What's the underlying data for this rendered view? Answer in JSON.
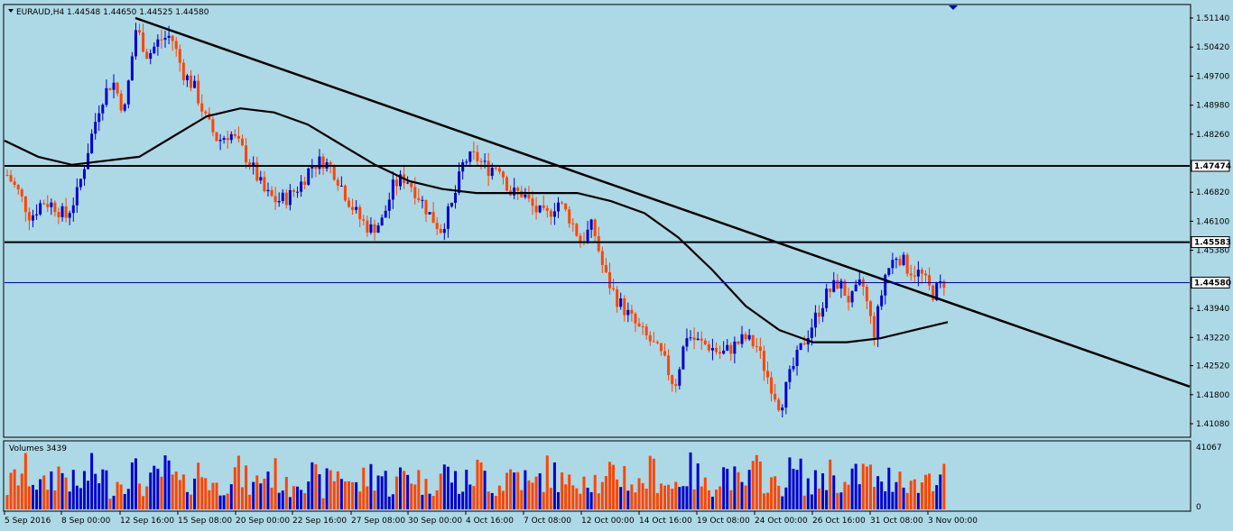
{
  "chart_data": {
    "type": "candlestick",
    "symbol_header": "EURAUD,H4  1.44548 1.44650 1.44525 1.44580",
    "colors": {
      "background": "#add8e6",
      "bull": "#0000cd",
      "bear": "#ff4500",
      "line": "#000000",
      "bid_line": "#0000cd"
    },
    "price_axis": {
      "ylim": [
        1.4108,
        1.5114
      ],
      "ticks": [
        "1.51140",
        "1.50420",
        "1.49700",
        "1.48980",
        "1.48260",
        "1.46820",
        "1.46100",
        "1.45380",
        "1.43940",
        "1.43220",
        "1.42520",
        "1.41800",
        "1.41080"
      ]
    },
    "horizontal_levels": [
      {
        "label": "1.47474",
        "value": 1.47474
      },
      {
        "label": "1.45583",
        "value": 1.45583
      }
    ],
    "current_price": {
      "label": "1.44580",
      "value": 1.4458
    },
    "trendline": {
      "start": {
        "bar": 0,
        "price": 1.5114
      },
      "end": {
        "bar": 1310,
        "price": 1.42
      }
    },
    "time_axis_labels": [
      "5 Sep 2016",
      "8 Sep 00:00",
      "12 Sep 16:00",
      "15 Sep 08:00",
      "20 Sep 00:00",
      "22 Sep 16:00",
      "27 Sep 08:00",
      "30 Sep 00:00",
      "4 Oct 16:00",
      "7 Oct 08:00",
      "12 Oct 00:00",
      "14 Oct 16:00",
      "19 Oct 08:00",
      "24 Oct 00:00",
      "26 Oct 16:00",
      "31 Oct 08:00",
      "3 Nov 00:00"
    ],
    "close_path": [
      1.4725,
      1.468,
      1.462,
      1.466,
      1.465,
      1.462,
      1.468,
      1.48,
      1.491,
      1.496,
      1.488,
      1.509,
      1.502,
      1.506,
      1.507,
      1.498,
      1.494,
      1.486,
      1.481,
      1.483,
      1.479,
      1.474,
      1.468,
      1.466,
      1.467,
      1.47,
      1.475,
      1.476,
      1.473,
      1.467,
      1.462,
      1.459,
      1.461,
      1.47,
      1.472,
      1.468,
      1.463,
      1.459,
      1.465,
      1.476,
      1.477,
      1.474,
      1.475,
      1.468,
      1.468,
      1.464,
      1.462,
      1.466,
      1.462,
      1.456,
      1.46,
      1.448,
      1.442,
      1.438,
      1.434,
      1.431,
      1.427,
      1.42,
      1.433,
      1.431,
      1.43,
      1.428,
      1.43,
      1.432,
      1.43,
      1.422,
      1.415,
      1.424,
      1.431,
      1.437,
      1.443,
      1.446,
      1.441,
      1.446,
      1.433,
      1.448,
      1.453,
      1.449,
      1.448,
      1.443,
      1.446
    ],
    "ma_path": [
      1.481,
      1.477,
      1.475,
      1.476,
      1.477,
      1.482,
      1.487,
      1.489,
      1.488,
      1.485,
      1.48,
      1.475,
      1.471,
      1.469,
      1.468,
      1.468,
      1.468,
      1.468,
      1.466,
      1.463,
      1.457,
      1.449,
      1.44,
      1.434,
      1.431,
      1.431,
      1.432,
      1.434,
      1.436
    ],
    "volume": {
      "label": "Volumes 3439",
      "ticks": [
        "41067",
        "0"
      ],
      "max": 41067
    }
  }
}
